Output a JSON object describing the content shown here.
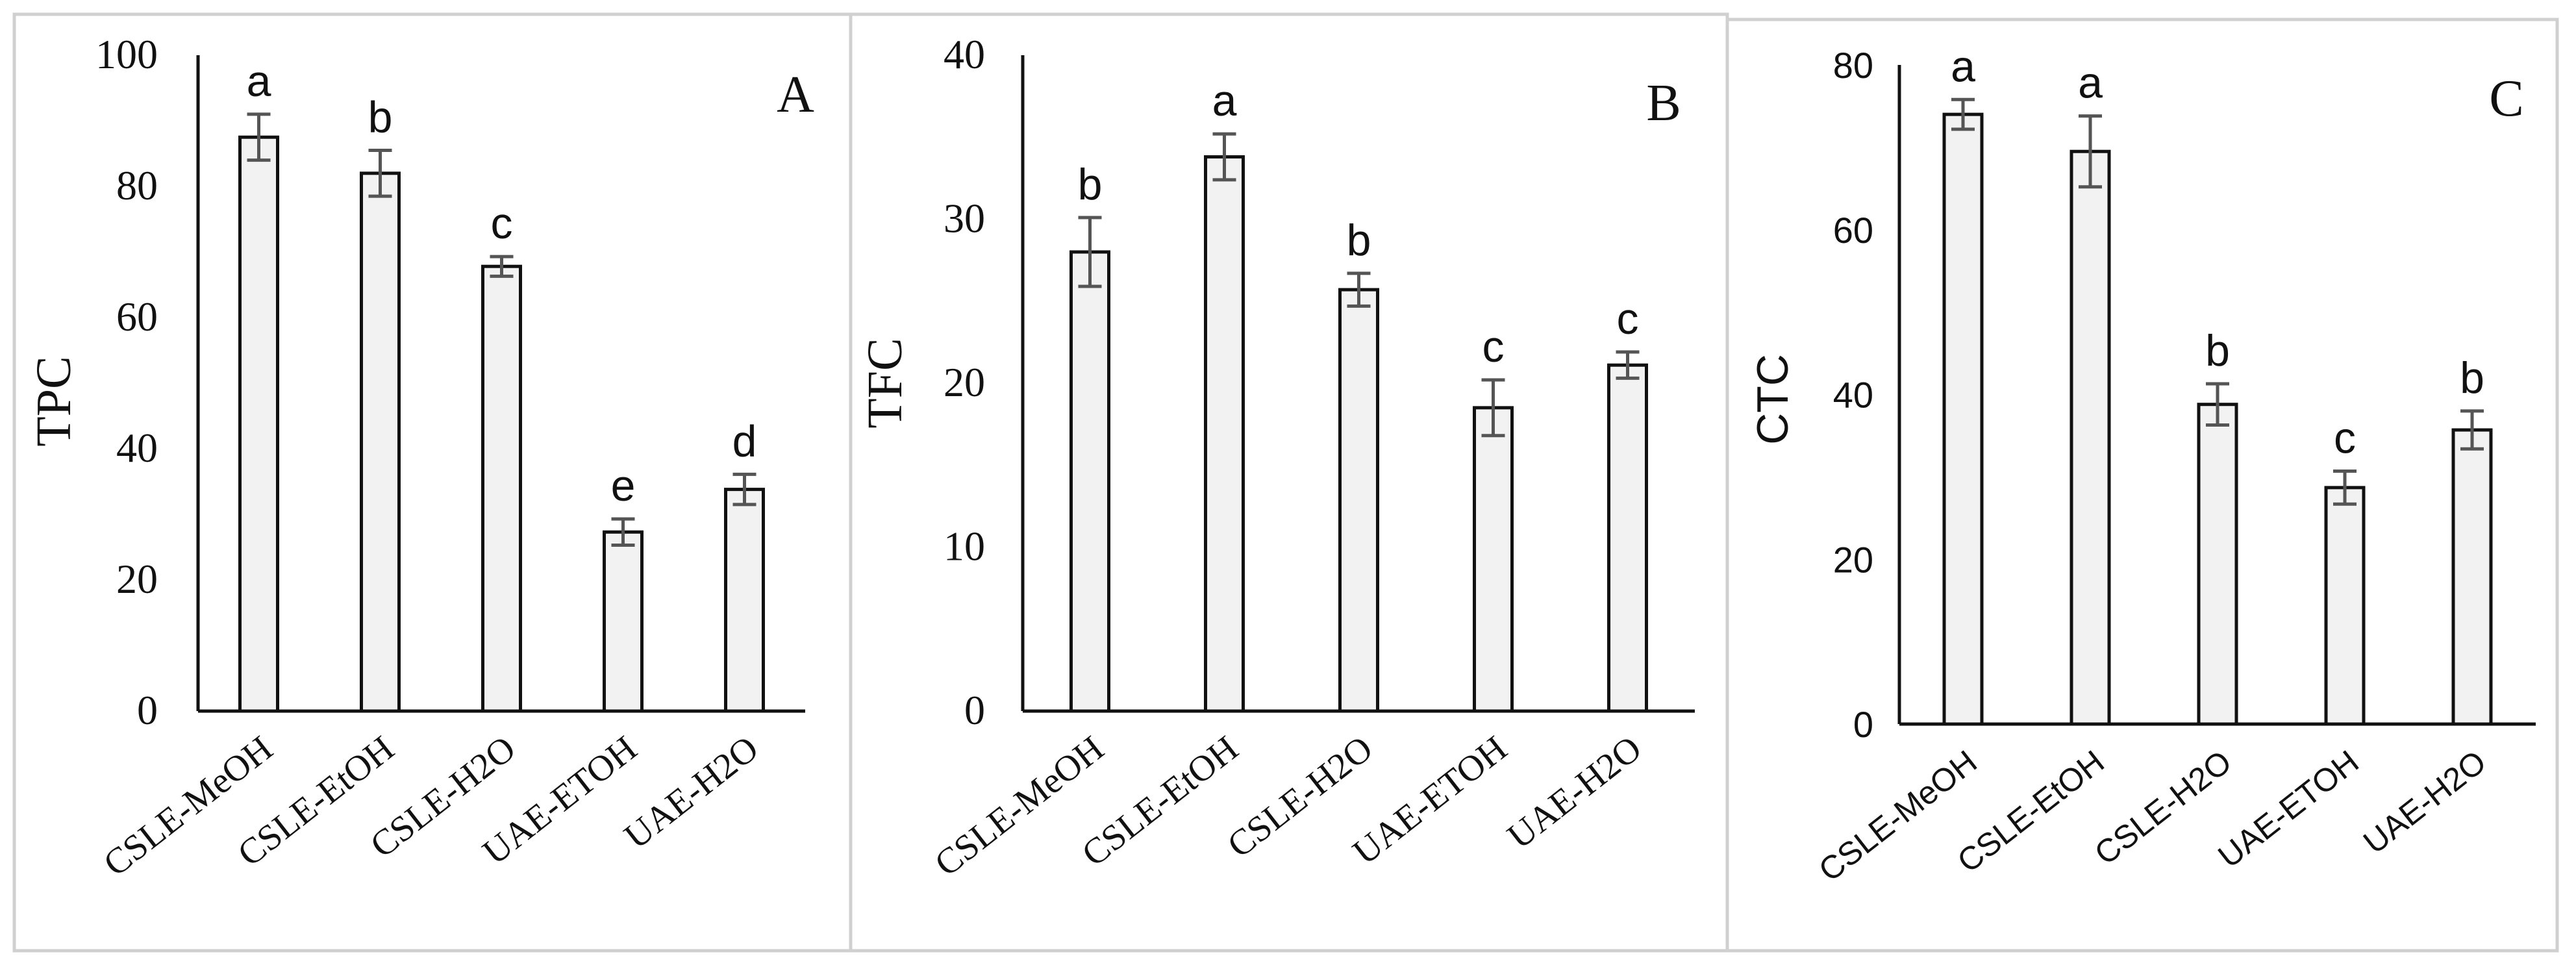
{
  "chart_data": [
    {
      "type": "bar",
      "panel_label": "A",
      "ylabel": "TPC",
      "ylim": [
        0,
        100
      ],
      "yticks": [
        0,
        20,
        40,
        60,
        80,
        100
      ],
      "ytick_labels": [
        "0",
        "20",
        "40",
        "60",
        "80",
        "100"
      ],
      "categories": [
        "CSLE-MeOH",
        "CSLE-EtOH",
        "CSLE-H2O",
        "UAE-ETOH",
        "UAE-H2O"
      ],
      "values": [
        87.5,
        82,
        67.8,
        27.3,
        33.8
      ],
      "errors": [
        3.5,
        3.5,
        1.5,
        2.0,
        2.3
      ],
      "significance_labels": [
        "a",
        "b",
        "c",
        "e",
        "d"
      ],
      "grid": false,
      "style": {
        "font": "serif",
        "bar_fill": "#f2f2f2",
        "bar_stroke": "#111111",
        "error_color": "#555555"
      }
    },
    {
      "type": "bar",
      "panel_label": "B",
      "ylabel": "TFC",
      "ylim": [
        0,
        40
      ],
      "yticks": [
        0,
        10,
        20,
        30,
        40
      ],
      "ytick_labels": [
        "0",
        "10",
        "20",
        "30",
        "40"
      ],
      "categories": [
        "CSLE-MeOH",
        "CSLE-EtOH",
        "CSLE-H2O",
        "UAE-ETOH",
        "UAE-H2O"
      ],
      "values": [
        28.0,
        33.8,
        25.7,
        18.5,
        21.1
      ],
      "errors": [
        2.1,
        1.4,
        1.0,
        1.7,
        0.8
      ],
      "significance_labels": [
        "b",
        "a",
        "b",
        "c",
        "c"
      ],
      "grid": false,
      "style": {
        "font": "serif",
        "bar_fill": "#f2f2f2",
        "bar_stroke": "#111111",
        "error_color": "#555555"
      }
    },
    {
      "type": "bar",
      "panel_label": "C",
      "ylabel": "CTC",
      "ylim": [
        0,
        80
      ],
      "yticks": [
        0,
        20,
        40,
        60,
        80
      ],
      "ytick_labels": [
        "0",
        "20",
        "40",
        "60",
        "80"
      ],
      "categories": [
        "CSLE-MeOH",
        "CSLE-EtOH",
        "CSLE-H2O",
        "UAE-ETOH",
        "UAE-H2O"
      ],
      "values": [
        74.0,
        69.5,
        38.8,
        28.7,
        35.7
      ],
      "errors": [
        1.8,
        4.3,
        2.5,
        2.0,
        2.3
      ],
      "significance_labels": [
        "a",
        "a",
        "b",
        "c",
        "b"
      ],
      "grid": false,
      "style": {
        "font": "sans",
        "bar_fill": "#f2f2f2",
        "bar_stroke": "#111111",
        "error_color": "#555555"
      }
    }
  ]
}
